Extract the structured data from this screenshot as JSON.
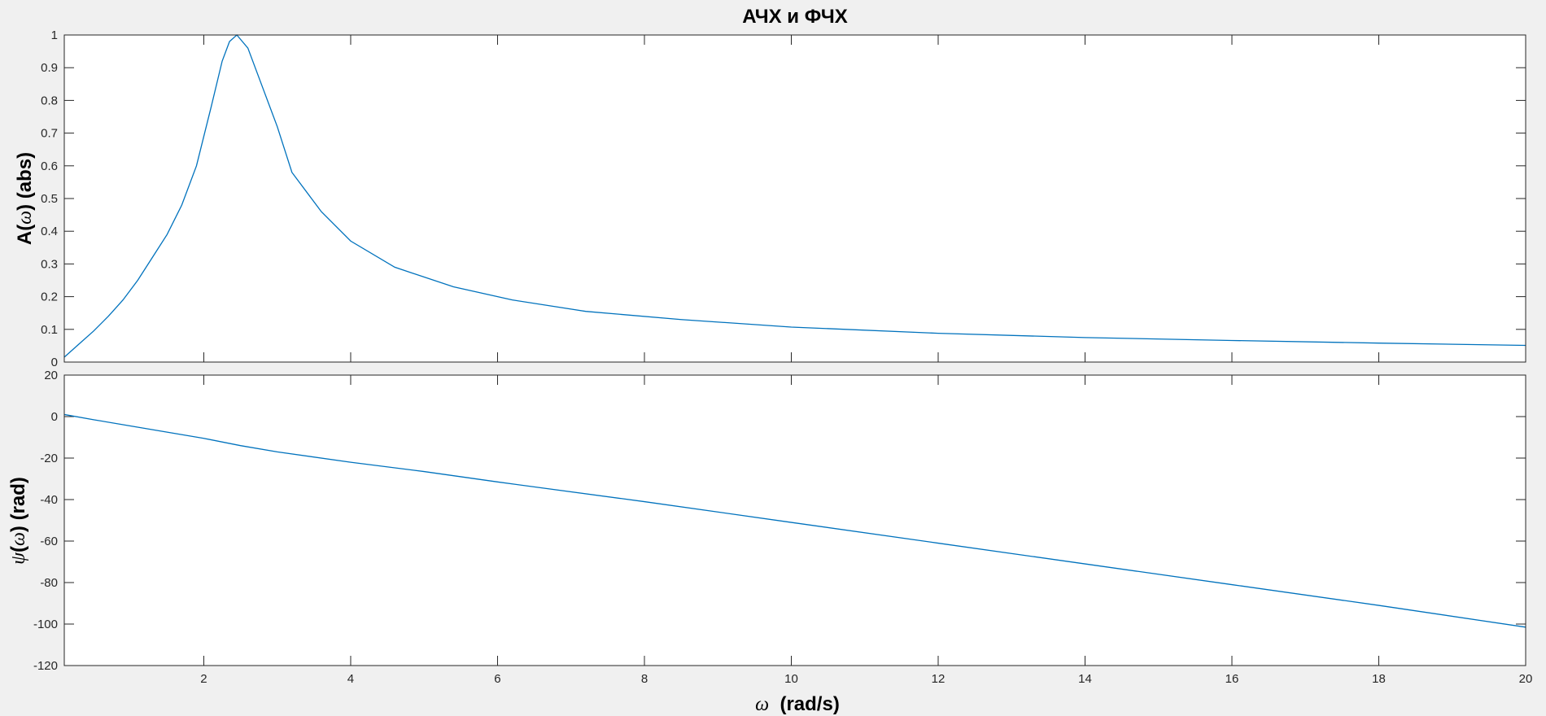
{
  "figure": {
    "title": "АЧХ и ФЧХ"
  },
  "chart_data": [
    {
      "type": "line",
      "title": "АЧХ и ФЧХ",
      "ylabel_prefix": "A(",
      "ylabel_symbol": "ω",
      "ylabel_suffix": ") (abs)",
      "xlim": [
        0.1,
        20
      ],
      "ylim": [
        0,
        1
      ],
      "grid": false,
      "xticks": [
        2,
        4,
        6,
        8,
        10,
        12,
        14,
        16,
        18,
        20
      ],
      "yticks": [
        0,
        0.1,
        0.2,
        0.3,
        0.4,
        0.5,
        0.6,
        0.7,
        0.8,
        0.9,
        1
      ],
      "ytick_labels": [
        "0",
        "0.1",
        "0.2",
        "0.3",
        "0.4",
        "0.5",
        "0.6",
        "0.7",
        "0.8",
        "0.9",
        "1"
      ],
      "series": [
        {
          "color": "#0072bd",
          "x": [
            0.1,
            0.3,
            0.5,
            0.7,
            0.9,
            1.1,
            1.3,
            1.5,
            1.7,
            1.9,
            2.1,
            2.25,
            2.35,
            2.45,
            2.6,
            2.8,
            3.0,
            3.2,
            3.6,
            4.0,
            4.6,
            5.4,
            6.2,
            7.2,
            8.5,
            10,
            12,
            14,
            16,
            18,
            20
          ],
          "y": [
            0.015,
            0.055,
            0.095,
            0.14,
            0.19,
            0.25,
            0.32,
            0.39,
            0.48,
            0.6,
            0.78,
            0.92,
            0.98,
            1.0,
            0.96,
            0.84,
            0.72,
            0.58,
            0.46,
            0.37,
            0.29,
            0.23,
            0.19,
            0.155,
            0.13,
            0.107,
            0.088,
            0.075,
            0.066,
            0.058,
            0.051
          ]
        }
      ]
    },
    {
      "type": "line",
      "ylabel_symbol": "ψ",
      "ylabel_mid": "(",
      "ylabel_symbol2": "ω",
      "ylabel_suffix": ") (rad)",
      "xlabel_symbol": "ω",
      "xlabel_suffix": "  (rad/s)",
      "xlim": [
        0.1,
        20
      ],
      "ylim": [
        -120,
        20
      ],
      "grid": false,
      "xticks": [
        2,
        4,
        6,
        8,
        10,
        12,
        14,
        16,
        18,
        20
      ],
      "xtick_labels": [
        "2",
        "4",
        "6",
        "8",
        "10",
        "12",
        "14",
        "16",
        "18",
        "20"
      ],
      "yticks": [
        -120,
        -100,
        -80,
        -60,
        -40,
        -20,
        0,
        20
      ],
      "ytick_labels": [
        "-120",
        "-100",
        "-80",
        "-60",
        "-40",
        "-20",
        "0",
        "20"
      ],
      "series": [
        {
          "color": "#0072bd",
          "x": [
            0.1,
            0.5,
            1.0,
            1.5,
            2.0,
            2.5,
            3.0,
            4.0,
            5.0,
            6.0,
            8.0,
            10,
            12,
            14,
            16,
            18,
            20
          ],
          "y": [
            1.0,
            -1.5,
            -4.5,
            -7.5,
            -10.5,
            -14,
            -17,
            -22,
            -26.5,
            -31.5,
            -41,
            -51,
            -61,
            -71,
            -81,
            -91,
            -101.5
          ]
        }
      ]
    }
  ]
}
